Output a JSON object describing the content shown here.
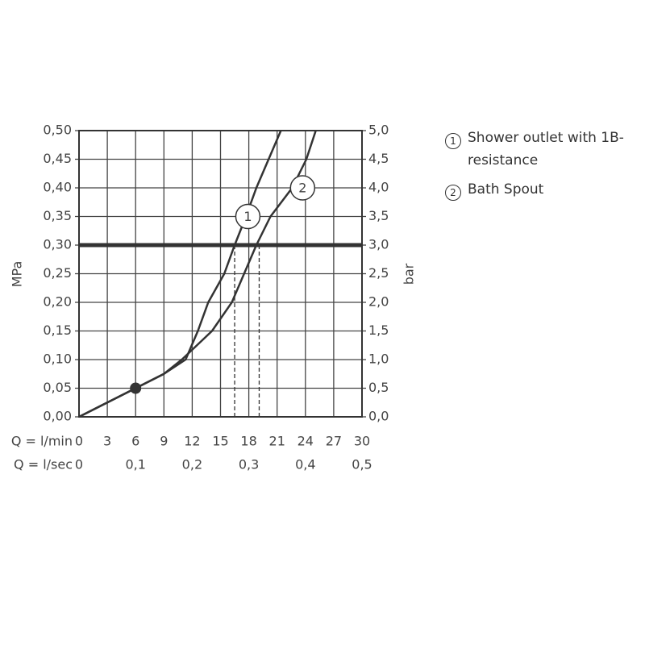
{
  "chart_data": {
    "type": "line",
    "x_label": "Q = l/min",
    "x2_label": "Q = l/sec",
    "y_label": "MPa",
    "y2_label": "bar",
    "xlim": [
      0,
      30
    ],
    "xticks": [
      0,
      3,
      6,
      9,
      12,
      15,
      18,
      21,
      24,
      27,
      30
    ],
    "x2lim": [
      0,
      0.5
    ],
    "x2ticks": [
      0,
      {
        "value": 0.1,
        "label": "0,1"
      },
      {
        "value": 0.2,
        "label": "0,2"
      },
      {
        "value": 0.3,
        "label": "0,3"
      },
      {
        "value": 0.4,
        "label": "0,4"
      },
      {
        "value": 0.5,
        "label": "0,5"
      }
    ],
    "ylim": [
      0,
      0.5
    ],
    "yticks": [
      {
        "value": 0,
        "label": "0,00"
      },
      {
        "value": 0.05,
        "label": "0,05"
      },
      {
        "value": 0.1,
        "label": "0,10"
      },
      {
        "value": 0.15,
        "label": "0,15"
      },
      {
        "value": 0.2,
        "label": "0,20"
      },
      {
        "value": 0.25,
        "label": "0,25"
      },
      {
        "value": 0.3,
        "label": "0,30"
      },
      {
        "value": 0.35,
        "label": "0,35"
      },
      {
        "value": 0.4,
        "label": "0,40"
      },
      {
        "value": 0.45,
        "label": "0,45"
      },
      {
        "value": 0.5,
        "label": "0,50"
      }
    ],
    "y2lim": [
      0,
      5
    ],
    "y2ticks": [
      {
        "value": 0,
        "label": "0,0"
      },
      {
        "value": 0.5,
        "label": "0,5"
      },
      {
        "value": 1,
        "label": "1,0"
      },
      {
        "value": 1.5,
        "label": "1,5"
      },
      {
        "value": 2,
        "label": "2,0"
      },
      {
        "value": 2.5,
        "label": "2,5"
      },
      {
        "value": 3,
        "label": "3,0"
      },
      {
        "value": 3.5,
        "label": "3,5"
      },
      {
        "value": 4,
        "label": "4,0"
      },
      {
        "value": 4.5,
        "label": "4,5"
      },
      {
        "value": 5,
        "label": "5,0"
      }
    ],
    "grid": true,
    "threshold": 0.3,
    "drop_lines_x": [
      16.5,
      19.1
    ],
    "point": {
      "x": 6,
      "y": 0.05
    },
    "series": [
      {
        "name": "Shower outlet with 1B-resistance",
        "color": "#333333",
        "x": [
          0,
          3,
          6,
          9,
          11.3,
          12.6,
          13.7,
          15.4,
          16.5,
          17.7,
          18.8,
          20.1,
          21.4
        ],
        "values": [
          0,
          0.025,
          0.05,
          0.075,
          0.1,
          0.15,
          0.2,
          0.25,
          0.3,
          0.35,
          0.4,
          0.45,
          0.5
        ]
      },
      {
        "name": "Bath Spout",
        "color": "#333333",
        "x": [
          0,
          3,
          6,
          9,
          10.9,
          14.1,
          16.2,
          17.5,
          18.8,
          20.3,
          22.6,
          24.1,
          25.1
        ],
        "values": [
          0,
          0.025,
          0.05,
          0.075,
          0.1,
          0.15,
          0.2,
          0.25,
          0.3,
          0.35,
          0.4,
          0.45,
          0.5
        ]
      }
    ],
    "annotations": [
      {
        "text": "1",
        "x": 17.9,
        "y": 0.35
      },
      {
        "text": "2",
        "x": 23.7,
        "y": 0.4
      }
    ]
  }
}
